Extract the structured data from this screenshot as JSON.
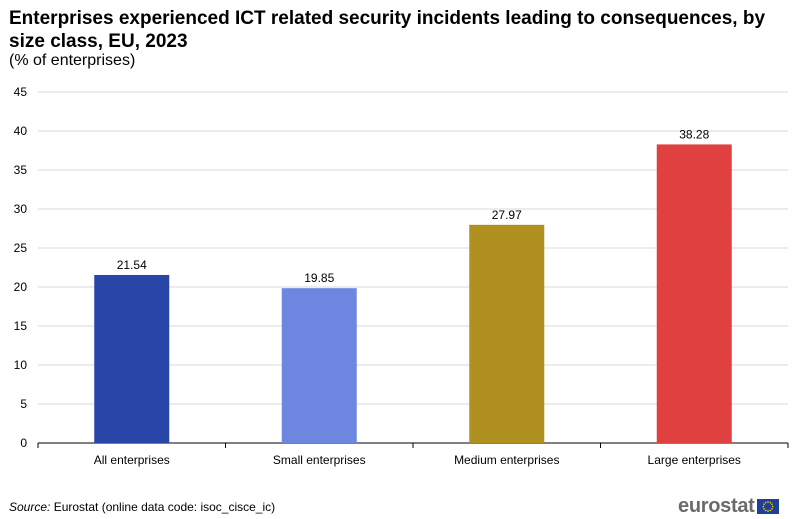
{
  "title": "Enterprises experienced ICT related security incidents leading to consequences, by size class, EU, 2023",
  "subtitle": "(% of enterprises)",
  "chart_data": {
    "type": "bar",
    "title": "Enterprises experienced ICT related security incidents leading to consequences, by size class, EU, 2023",
    "subtitle": "(% of enterprises)",
    "categories": [
      "All enterprises",
      "Small enterprises",
      "Medium enterprises",
      "Large enterprises"
    ],
    "values": [
      21.54,
      19.85,
      27.97,
      38.28
    ],
    "value_labels": [
      "21.54",
      "19.85",
      "27.97",
      "38.28"
    ],
    "colors": [
      "#2845a8",
      "#6d87e0",
      "#b0901e",
      "#e04040"
    ],
    "ylim": [
      0,
      45
    ],
    "yticks": [
      0,
      5,
      10,
      15,
      20,
      25,
      30,
      35,
      40,
      45
    ],
    "xlabel": "",
    "ylabel": "",
    "grid": true,
    "legend": "none"
  },
  "source": {
    "label": "Source:",
    "text": " Eurostat (online data code: isoc_cisce_ic)"
  },
  "logo": {
    "text": "eurostat",
    "flag_color": "#1f3f9b",
    "star_color": "#f5d300"
  }
}
